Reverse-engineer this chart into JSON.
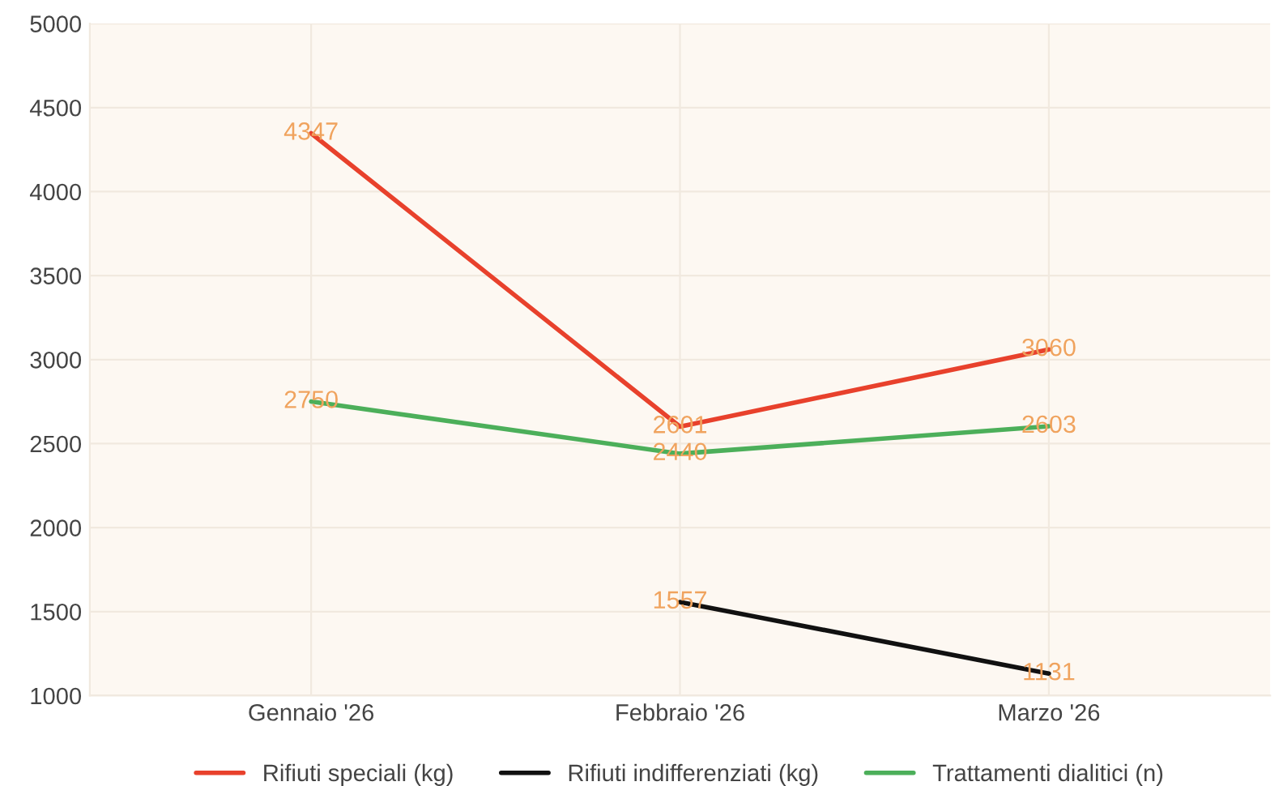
{
  "chart_data": {
    "type": "line",
    "categories": [
      "Gennaio '26",
      "Febbraio '26",
      "Marzo '26"
    ],
    "series": [
      {
        "name": "Rifiuti speciali (kg)",
        "color": "#e8412c",
        "values": [
          4347,
          2601,
          3060
        ]
      },
      {
        "name": "Rifiuti indifferenziati (kg)",
        "color": "#111111",
        "values": [
          null,
          1557,
          1131
        ]
      },
      {
        "name": "Trattamenti dialitici (n)",
        "color": "#4caf5a",
        "values": [
          2750,
          2440,
          2603
        ]
      }
    ],
    "ylim": [
      1000,
      5000
    ],
    "yticks": [
      1000,
      1500,
      2000,
      2500,
      3000,
      3500,
      4000,
      4500,
      5000
    ],
    "grid": true,
    "legend": "bottom",
    "data_labels": true,
    "marker": "none",
    "line_style": "solid"
  }
}
